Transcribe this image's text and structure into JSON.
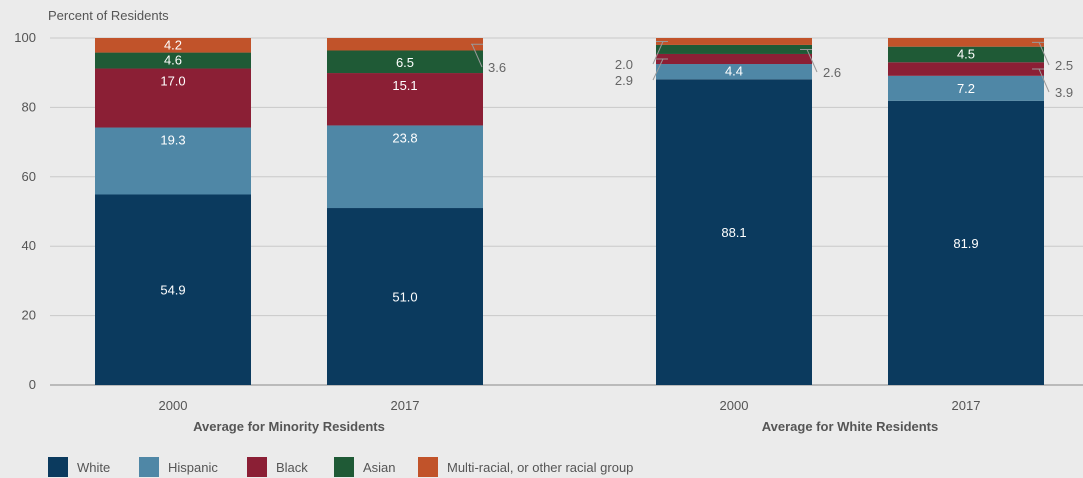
{
  "chart_data": {
    "type": "bar",
    "stacked": true,
    "ylabel": "Percent of Residents",
    "ylim": [
      0,
      100
    ],
    "yticks": [
      "0",
      "20",
      "40",
      "60",
      "80",
      "100"
    ],
    "grid": true,
    "legend_position": "bottom-left",
    "groups": [
      {
        "label": "Average for Minority Residents",
        "categories": [
          "2000",
          "2017"
        ]
      },
      {
        "label": "Average for White Residents",
        "categories": [
          "2000",
          "2017"
        ]
      }
    ],
    "bars": [
      {
        "group": 0,
        "category": "2000",
        "labels": [
          "54.9",
          "19.3",
          "17.0",
          "4.6",
          "4.2"
        ]
      },
      {
        "group": 0,
        "category": "2017",
        "labels": [
          "51.0",
          "23.8",
          "15.1",
          "6.5",
          "3.6"
        ]
      },
      {
        "group": 1,
        "category": "2000",
        "labels": [
          "88.1",
          "4.4",
          "2.9",
          "2.6",
          "2.0"
        ]
      },
      {
        "group": 1,
        "category": "2017",
        "labels": [
          "81.9",
          "7.2",
          "3.9",
          "4.5",
          "2.5"
        ]
      }
    ],
    "series": [
      {
        "name": "White",
        "color": "#0b3a5e",
        "values": [
          54.9,
          51.0,
          88.1,
          81.9
        ]
      },
      {
        "name": "Hispanic",
        "color": "#4f87a6",
        "values": [
          19.3,
          23.8,
          4.4,
          7.2
        ]
      },
      {
        "name": "Black",
        "color": "#8b1f35",
        "values": [
          17.0,
          15.1,
          2.9,
          3.9
        ]
      },
      {
        "name": "Asian",
        "color": "#1f5a36",
        "values": [
          4.6,
          6.5,
          2.6,
          4.5
        ]
      },
      {
        "name": "Multi-racial, or other racial group",
        "color": "#c1532a",
        "values": [
          4.2,
          3.6,
          2.0,
          2.5
        ]
      }
    ]
  }
}
